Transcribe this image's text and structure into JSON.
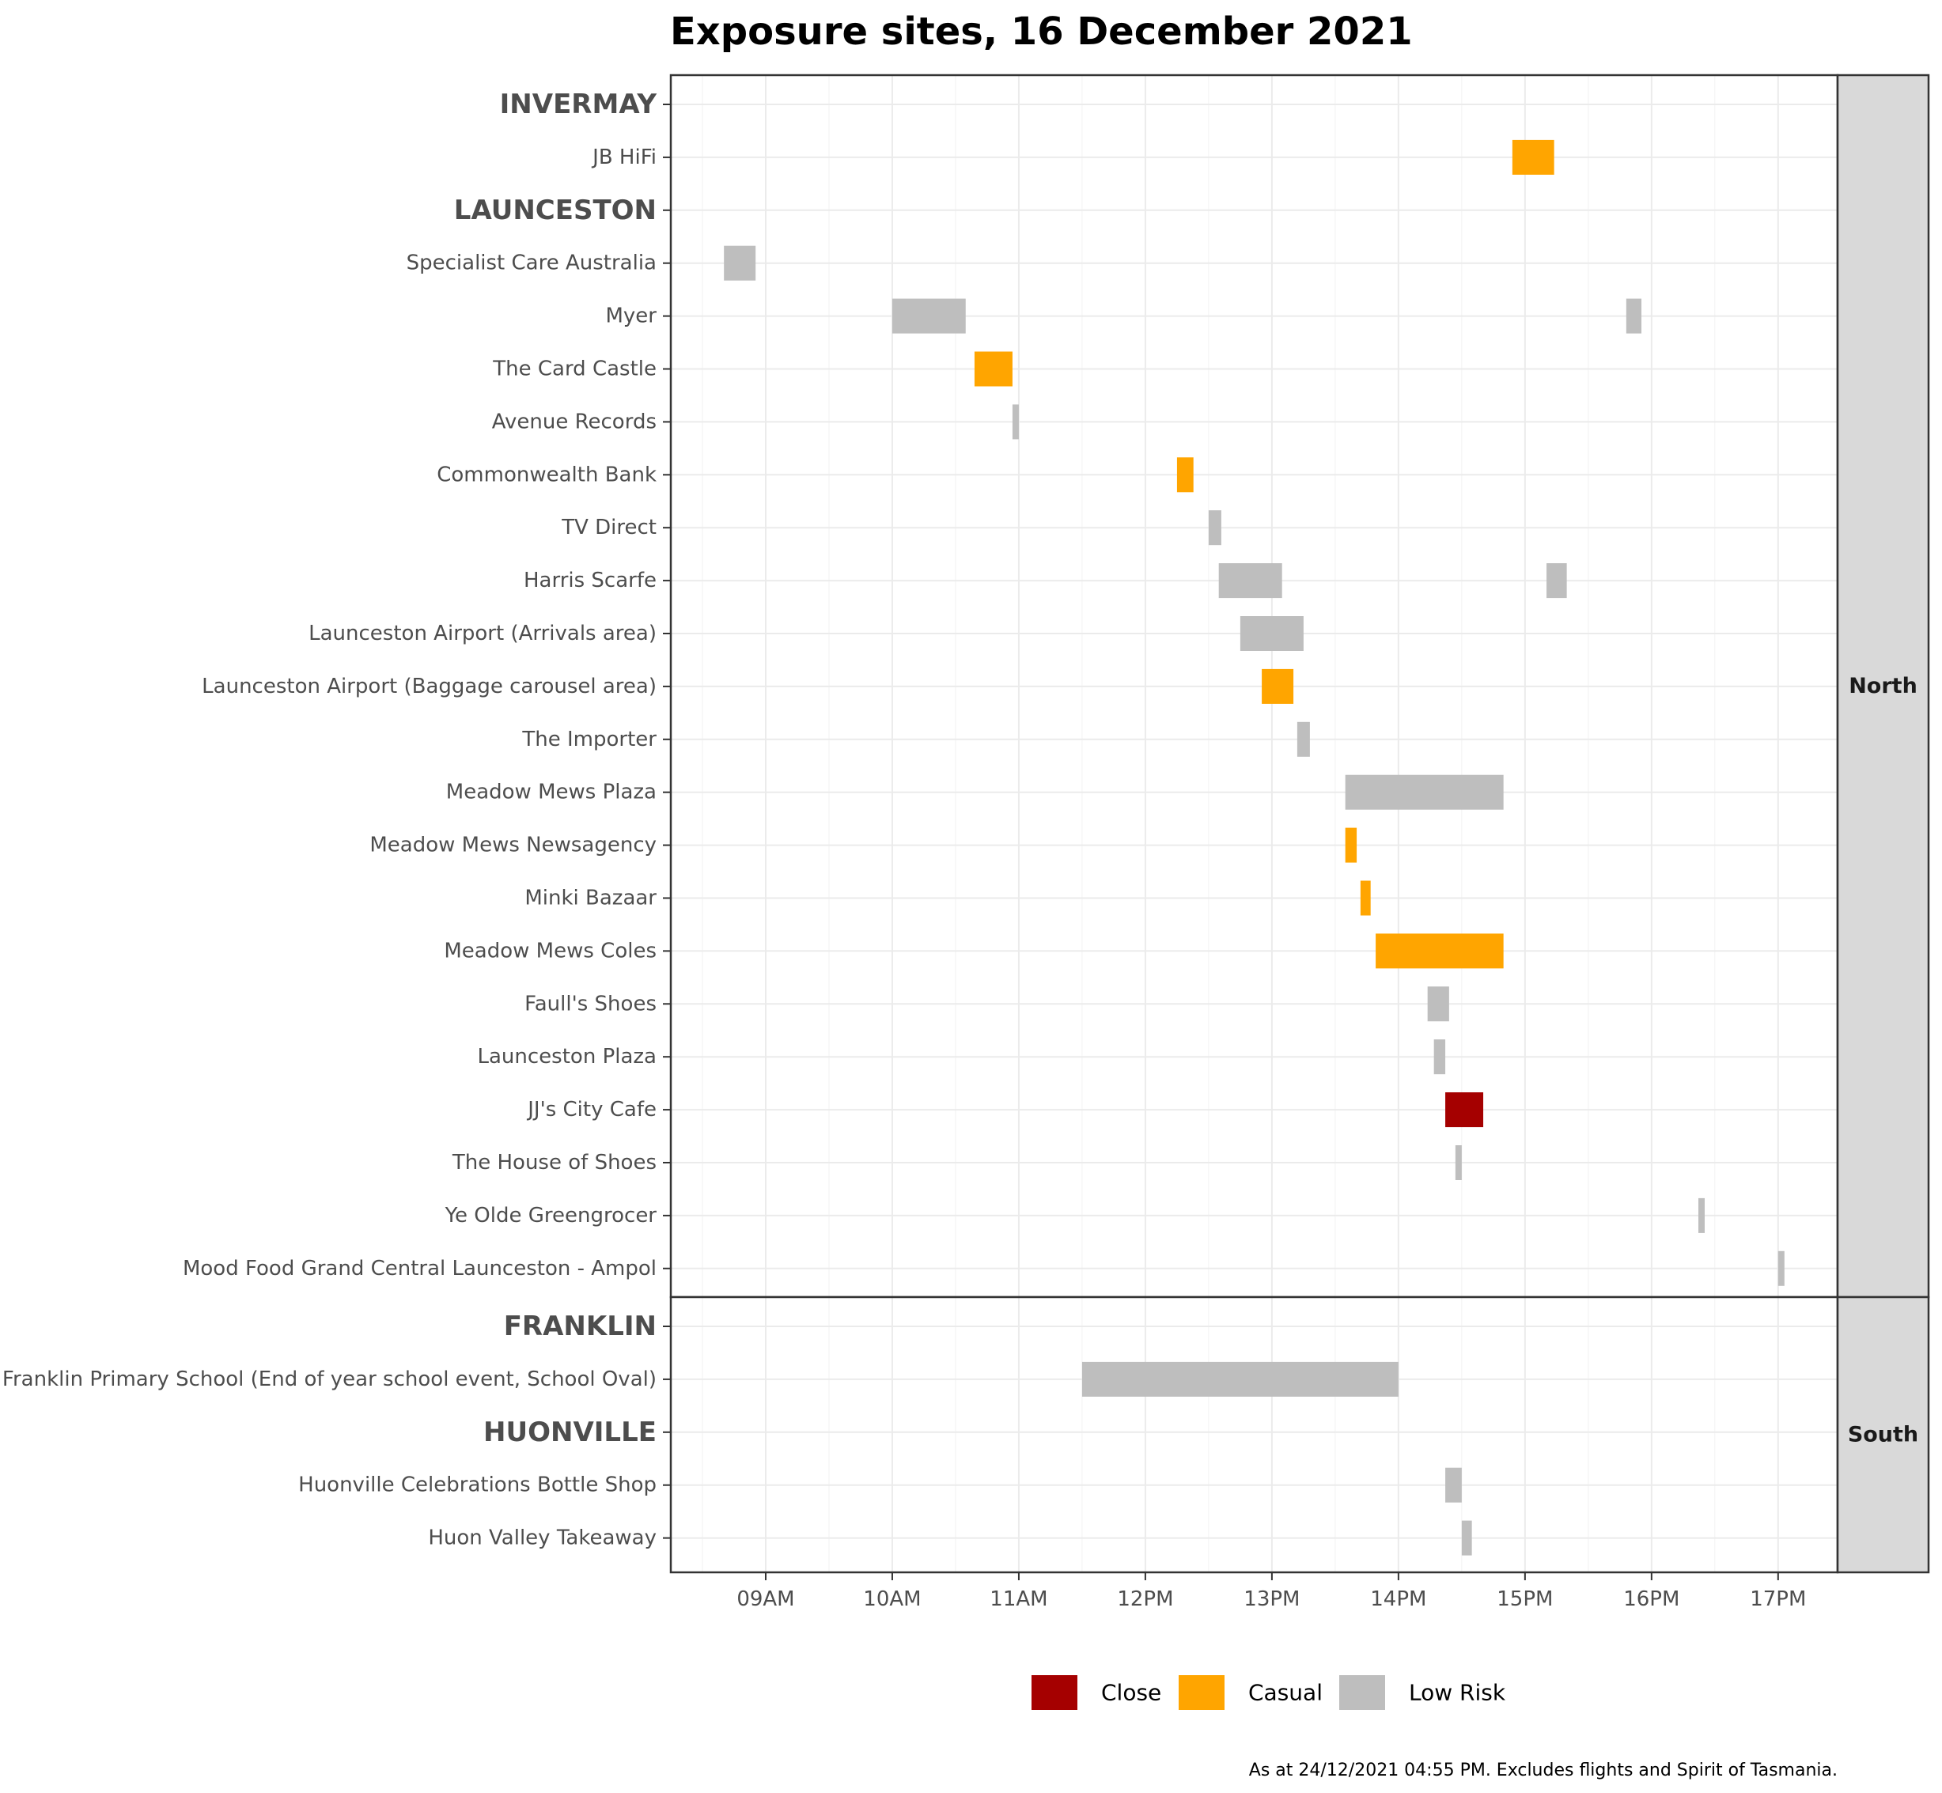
{
  "chart_data": {
    "type": "gantt",
    "title": "Exposure sites, 16 December 2021",
    "caption": "As at 24/12/2021 04:55 PM. Excludes flights and Spirit of Tasmania.",
    "x_axis": {
      "ticks": [
        "09AM",
        "10AM",
        "11AM",
        "12PM",
        "13PM",
        "14PM",
        "15PM",
        "16PM",
        "17PM"
      ],
      "tick_hours": [
        9,
        10,
        11,
        12,
        13,
        14,
        15,
        16,
        17
      ],
      "range_hours": [
        8.25,
        17.47
      ],
      "grid": true
    },
    "legend": {
      "position": "bottom",
      "items": [
        {
          "label": "Close",
          "color": "#a50000"
        },
        {
          "label": "Casual",
          "color": "#ffa500"
        },
        {
          "label": "Low Risk",
          "color": "#bebebe"
        }
      ]
    },
    "panels": [
      {
        "strip": "North",
        "rows": [
          {
            "label": "INVERMAY",
            "heading": true,
            "segments": []
          },
          {
            "label": "JB HiFi",
            "segments": [
              {
                "start": 14.9,
                "end": 15.23,
                "risk": "Casual"
              }
            ]
          },
          {
            "label": "LAUNCESTON",
            "heading": true,
            "segments": []
          },
          {
            "label": "Specialist Care Australia",
            "segments": [
              {
                "start": 8.67,
                "end": 8.92,
                "risk": "Low Risk"
              }
            ]
          },
          {
            "label": "Myer",
            "segments": [
              {
                "start": 10.0,
                "end": 10.58,
                "risk": "Low Risk"
              },
              {
                "start": 15.8,
                "end": 15.92,
                "risk": "Low Risk"
              }
            ]
          },
          {
            "label": "The Card Castle",
            "segments": [
              {
                "start": 10.65,
                "end": 10.95,
                "risk": "Casual"
              }
            ]
          },
          {
            "label": "Avenue Records",
            "segments": [
              {
                "start": 10.95,
                "end": 11.0,
                "risk": "Low Risk"
              }
            ]
          },
          {
            "label": "Commonwealth Bank",
            "segments": [
              {
                "start": 12.25,
                "end": 12.38,
                "risk": "Casual"
              }
            ]
          },
          {
            "label": "TV Direct",
            "segments": [
              {
                "start": 12.5,
                "end": 12.6,
                "risk": "Low Risk"
              }
            ]
          },
          {
            "label": "Harris Scarfe",
            "segments": [
              {
                "start": 12.58,
                "end": 13.08,
                "risk": "Low Risk"
              },
              {
                "start": 15.17,
                "end": 15.33,
                "risk": "Low Risk"
              }
            ]
          },
          {
            "label": "Launceston Airport (Arrivals area)",
            "segments": [
              {
                "start": 12.75,
                "end": 13.25,
                "risk": "Low Risk"
              }
            ]
          },
          {
            "label": "Launceston Airport (Baggage carousel area)",
            "segments": [
              {
                "start": 12.92,
                "end": 13.17,
                "risk": "Casual"
              }
            ]
          },
          {
            "label": "The Importer",
            "segments": [
              {
                "start": 13.2,
                "end": 13.3,
                "risk": "Low Risk"
              }
            ]
          },
          {
            "label": "Meadow Mews Plaza",
            "segments": [
              {
                "start": 13.58,
                "end": 14.83,
                "risk": "Low Risk"
              }
            ]
          },
          {
            "label": "Meadow Mews Newsagency",
            "segments": [
              {
                "start": 13.58,
                "end": 13.67,
                "risk": "Casual"
              }
            ]
          },
          {
            "label": "Minki Bazaar",
            "segments": [
              {
                "start": 13.7,
                "end": 13.78,
                "risk": "Casual"
              }
            ]
          },
          {
            "label": "Meadow Mews Coles",
            "segments": [
              {
                "start": 13.82,
                "end": 14.83,
                "risk": "Casual"
              }
            ]
          },
          {
            "label": "Faull's Shoes",
            "segments": [
              {
                "start": 14.23,
                "end": 14.4,
                "risk": "Low Risk"
              }
            ]
          },
          {
            "label": "Launceston Plaza",
            "segments": [
              {
                "start": 14.28,
                "end": 14.37,
                "risk": "Low Risk"
              }
            ]
          },
          {
            "label": "JJ's City Cafe",
            "segments": [
              {
                "start": 14.37,
                "end": 14.67,
                "risk": "Close"
              }
            ]
          },
          {
            "label": "The House of Shoes",
            "segments": [
              {
                "start": 14.45,
                "end": 14.5,
                "risk": "Low Risk"
              }
            ]
          },
          {
            "label": "Ye Olde Greengrocer",
            "segments": [
              {
                "start": 16.37,
                "end": 16.42,
                "risk": "Low Risk"
              }
            ]
          },
          {
            "label": "Mood Food Grand Central Launceston - Ampol",
            "segments": [
              {
                "start": 17.0,
                "end": 17.05,
                "risk": "Low Risk"
              }
            ]
          }
        ]
      },
      {
        "strip": "South",
        "rows": [
          {
            "label": "FRANKLIN",
            "heading": true,
            "segments": []
          },
          {
            "label": "Franklin Primary School (End of year school event, School Oval)",
            "segments": [
              {
                "start": 11.5,
                "end": 14.0,
                "risk": "Low Risk"
              }
            ]
          },
          {
            "label": "HUONVILLE",
            "heading": true,
            "segments": []
          },
          {
            "label": "Huonville Celebrations Bottle Shop",
            "segments": [
              {
                "start": 14.37,
                "end": 14.5,
                "risk": "Low Risk"
              }
            ]
          },
          {
            "label": "Huon Valley Takeaway",
            "segments": [
              {
                "start": 14.5,
                "end": 14.58,
                "risk": "Low Risk"
              }
            ]
          }
        ]
      }
    ]
  }
}
